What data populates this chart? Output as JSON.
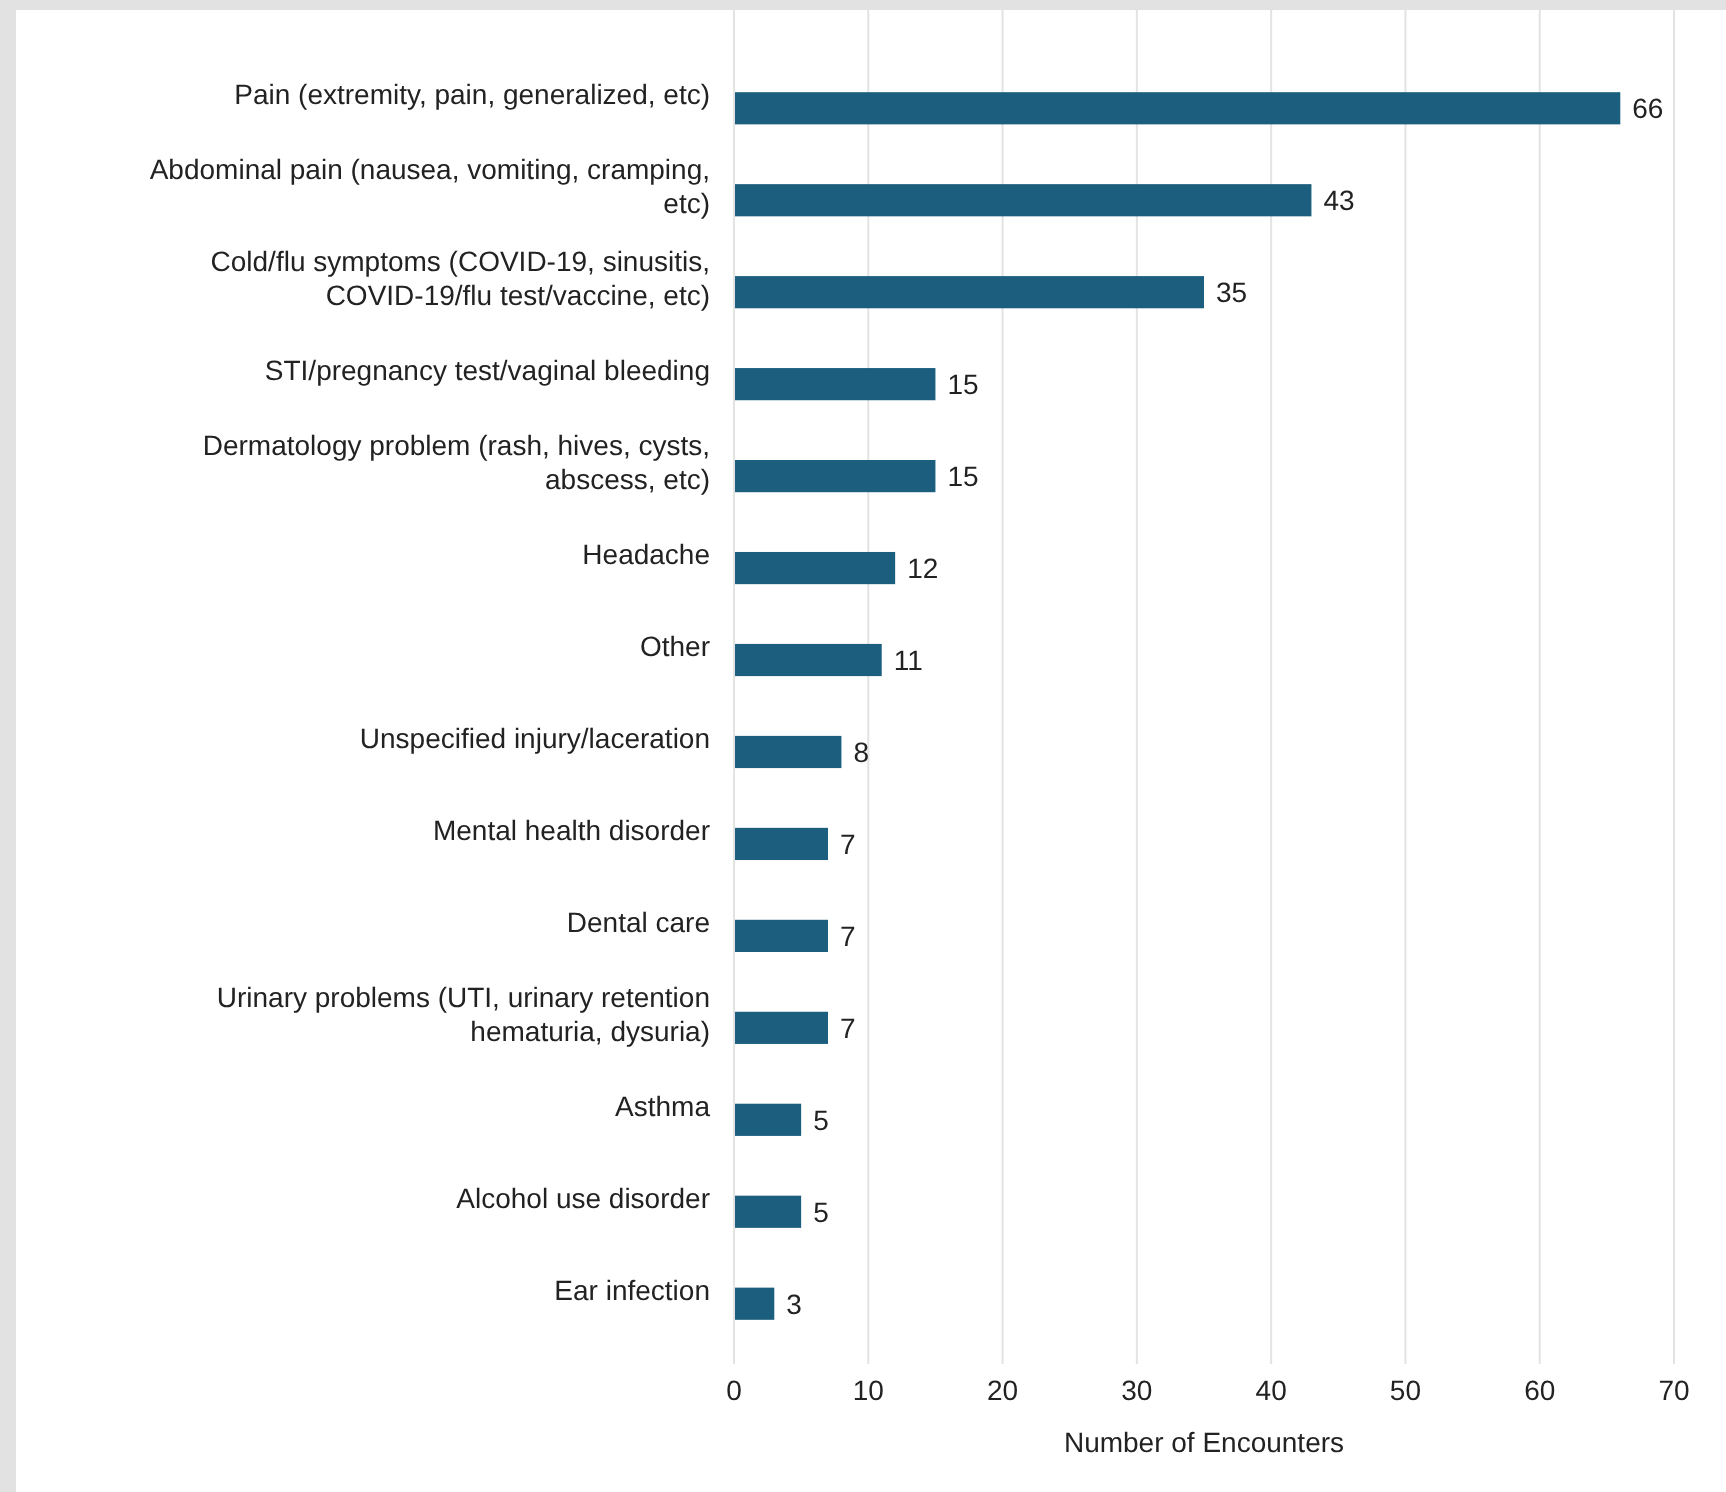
{
  "chart_data": {
    "type": "bar",
    "orientation": "horizontal",
    "xlabel": "Number of Encounters",
    "categories": [
      "Pain (extremity, pain, generalized, etc)",
      "Abdominal pain (nausea, vomiting, cramping, etc)",
      "Cold/flu symptoms (COVID-19, sinusitis, COVID-19/flu test/vaccine, etc)",
      "STI/pregnancy test/vaginal bleeding",
      "Dermatology problem (rash, hives, cysts, abscess, etc)",
      "Headache",
      "Other",
      "Unspecified injury/laceration",
      "Mental health disorder",
      "Dental care",
      "Urinary problems (UTI, urinary retention hematuria, dysuria)",
      "Asthma",
      "Alcohol use disorder",
      "Ear infection"
    ],
    "values": [
      66,
      43,
      35,
      15,
      15,
      12,
      11,
      8,
      7,
      7,
      7,
      5,
      5,
      3
    ],
    "color": "#1b5e7e",
    "data_labels": true,
    "grid": "x",
    "xlim": [
      0,
      70
    ],
    "xticks": [
      0,
      10,
      20,
      30,
      40,
      50,
      60,
      70
    ]
  }
}
